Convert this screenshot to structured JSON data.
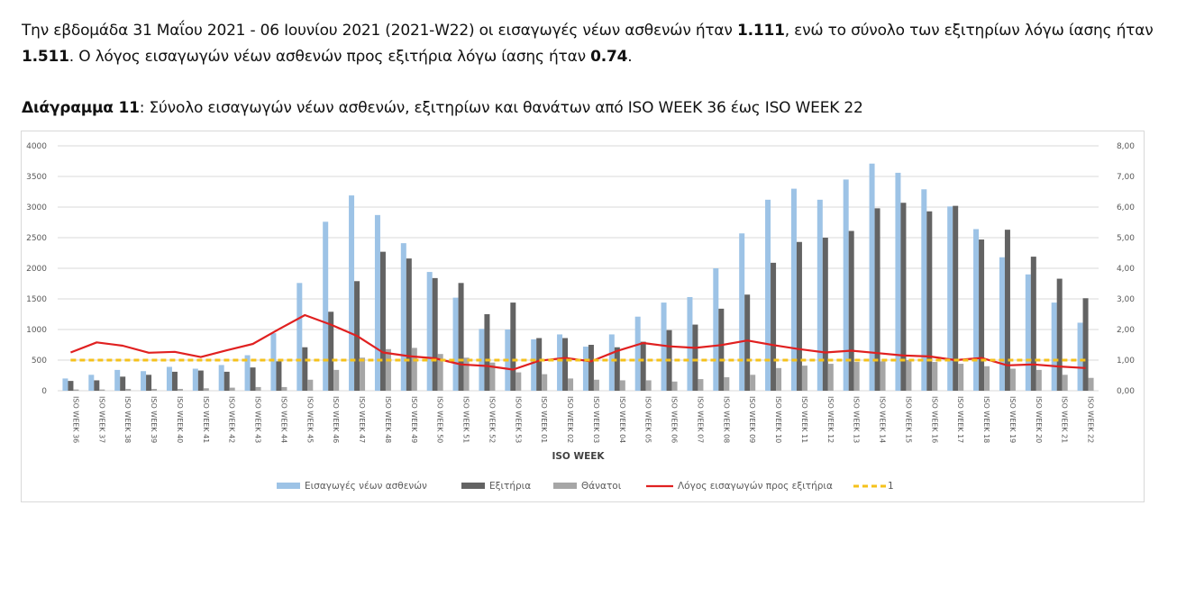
{
  "intro": {
    "p1": "Την εβδομάδα 31 Μαΐου 2021 - 06 Ιουνίου 2021 (2021-W22) οι εισαγωγές νέων ασθενών ήταν ",
    "admissions": "1.111",
    "p2": ", ενώ το σύνολο των εξιτηρίων λόγω ίασης ήταν ",
    "discharges": "1.511",
    "p3": ". Ο λόγος εισαγωγών νέων ασθενών προς εξιτήρια λόγω ίασης ήταν ",
    "ratio": "0.74",
    "p4": "."
  },
  "caption": {
    "label": "Διάγραμμα 11",
    "text": ": Σύνολο εισαγωγών νέων ασθενών, εξιτηρίων και θανάτων από ISO WEEK 36 έως ISO WEEK 22"
  },
  "chart_data": {
    "type": "bar",
    "xlabel": "ISO WEEK",
    "ylim_left": [
      0,
      4000
    ],
    "ylim_right": [
      0,
      8
    ],
    "left_ticks": [
      "0",
      "500",
      "1000",
      "1500",
      "2000",
      "2500",
      "3000",
      "3500",
      "4000"
    ],
    "right_ticks": [
      "0,00",
      "1,00",
      "2,00",
      "3,00",
      "4,00",
      "5,00",
      "6,00",
      "7,00",
      "8,00"
    ],
    "categories": [
      "ISO WEEK 36",
      "ISO WEEK 37",
      "ISO WEEK 38",
      "ISO WEEK 39",
      "ISO WEEK 40",
      "ISO WEEK 41",
      "ISO WEEK 42",
      "ISO WEEK 43",
      "ISO WEEK 44",
      "ISO WEEK 45",
      "ISO WEEK 46",
      "ISO WEEK 47",
      "ISO WEEK 48",
      "ISO WEEK 49",
      "ISO WEEK 50",
      "ISO WEEK 51",
      "ISO WEEK 52",
      "ISO WEEK 53",
      "ISO WEEK 01",
      "ISO WEEK 02",
      "ISO WEEK 03",
      "ISO WEEK 04",
      "ISO WEEK 05",
      "ISO WEEK 06",
      "ISO WEEK 07",
      "ISO WEEK 08",
      "ISO WEEK 09",
      "ISO WEEK 10",
      "ISO WEEK 11",
      "ISO WEEK 12",
      "ISO WEEK 13",
      "ISO WEEK 14",
      "ISO WEEK 15",
      "ISO WEEK 16",
      "ISO WEEK 17",
      "ISO WEEK 18",
      "ISO WEEK 19",
      "ISO WEEK 20",
      "ISO WEEK 21",
      "ISO WEEK 22"
    ],
    "series": [
      {
        "name": "Εισαγωγές νέων ασθενών",
        "kind": "bar",
        "axis": "left",
        "color": "#9dc3e6",
        "values": [
          200,
          260,
          340,
          320,
          390,
          360,
          420,
          580,
          940,
          1760,
          2760,
          3190,
          2870,
          2410,
          1940,
          1520,
          1010,
          1000,
          840,
          920,
          720,
          920,
          1210,
          1440,
          1530,
          2000,
          2570,
          3120,
          3300,
          3120,
          3450,
          3710,
          3560,
          3290,
          3010,
          2640,
          2180,
          1900,
          1440,
          1111
        ]
      },
      {
        "name": "Εξιτήρια",
        "kind": "bar",
        "axis": "left",
        "color": "#636363",
        "values": [
          160,
          170,
          230,
          260,
          310,
          330,
          310,
          380,
          480,
          710,
          1290,
          1790,
          2270,
          2160,
          1840,
          1760,
          1250,
          1440,
          860,
          860,
          750,
          710,
          800,
          990,
          1080,
          1340,
          1570,
          2090,
          2430,
          2500,
          2610,
          2980,
          3070,
          2930,
          3020,
          2470,
          2630,
          2190,
          1830,
          1511
        ]
      },
      {
        "name": "Θάνατοι",
        "kind": "bar",
        "axis": "left",
        "color": "#a6a6a6",
        "values": [
          20,
          20,
          30,
          30,
          30,
          40,
          50,
          60,
          60,
          180,
          340,
          540,
          680,
          700,
          600,
          540,
          460,
          300,
          270,
          200,
          180,
          170,
          170,
          150,
          190,
          220,
          260,
          370,
          410,
          440,
          470,
          480,
          500,
          470,
          440,
          400,
          360,
          340,
          260,
          210
        ]
      },
      {
        "name": "Λόγος εισαγωγών προς εξιτήρια",
        "kind": "line",
        "axis": "right",
        "color": "#e02020",
        "values": [
          1.25,
          1.58,
          1.47,
          1.24,
          1.27,
          1.1,
          1.32,
          1.53,
          2.01,
          2.47,
          2.16,
          1.79,
          1.25,
          1.13,
          1.06,
          0.86,
          0.81,
          0.69,
          0.98,
          1.07,
          0.96,
          1.3,
          1.56,
          1.45,
          1.4,
          1.49,
          1.64,
          1.49,
          1.36,
          1.25,
          1.31,
          1.23,
          1.15,
          1.12,
          1.0,
          1.07,
          0.83,
          0.86,
          0.79,
          0.74
        ]
      },
      {
        "name": "1",
        "kind": "line",
        "style": "dashed",
        "axis": "right",
        "color": "#f5c21b",
        "values": [
          1,
          1,
          1,
          1,
          1,
          1,
          1,
          1,
          1,
          1,
          1,
          1,
          1,
          1,
          1,
          1,
          1,
          1,
          1,
          1,
          1,
          1,
          1,
          1,
          1,
          1,
          1,
          1,
          1,
          1,
          1,
          1,
          1,
          1,
          1,
          1,
          1,
          1,
          1,
          1
        ]
      }
    ],
    "legend_position": "bottom"
  }
}
